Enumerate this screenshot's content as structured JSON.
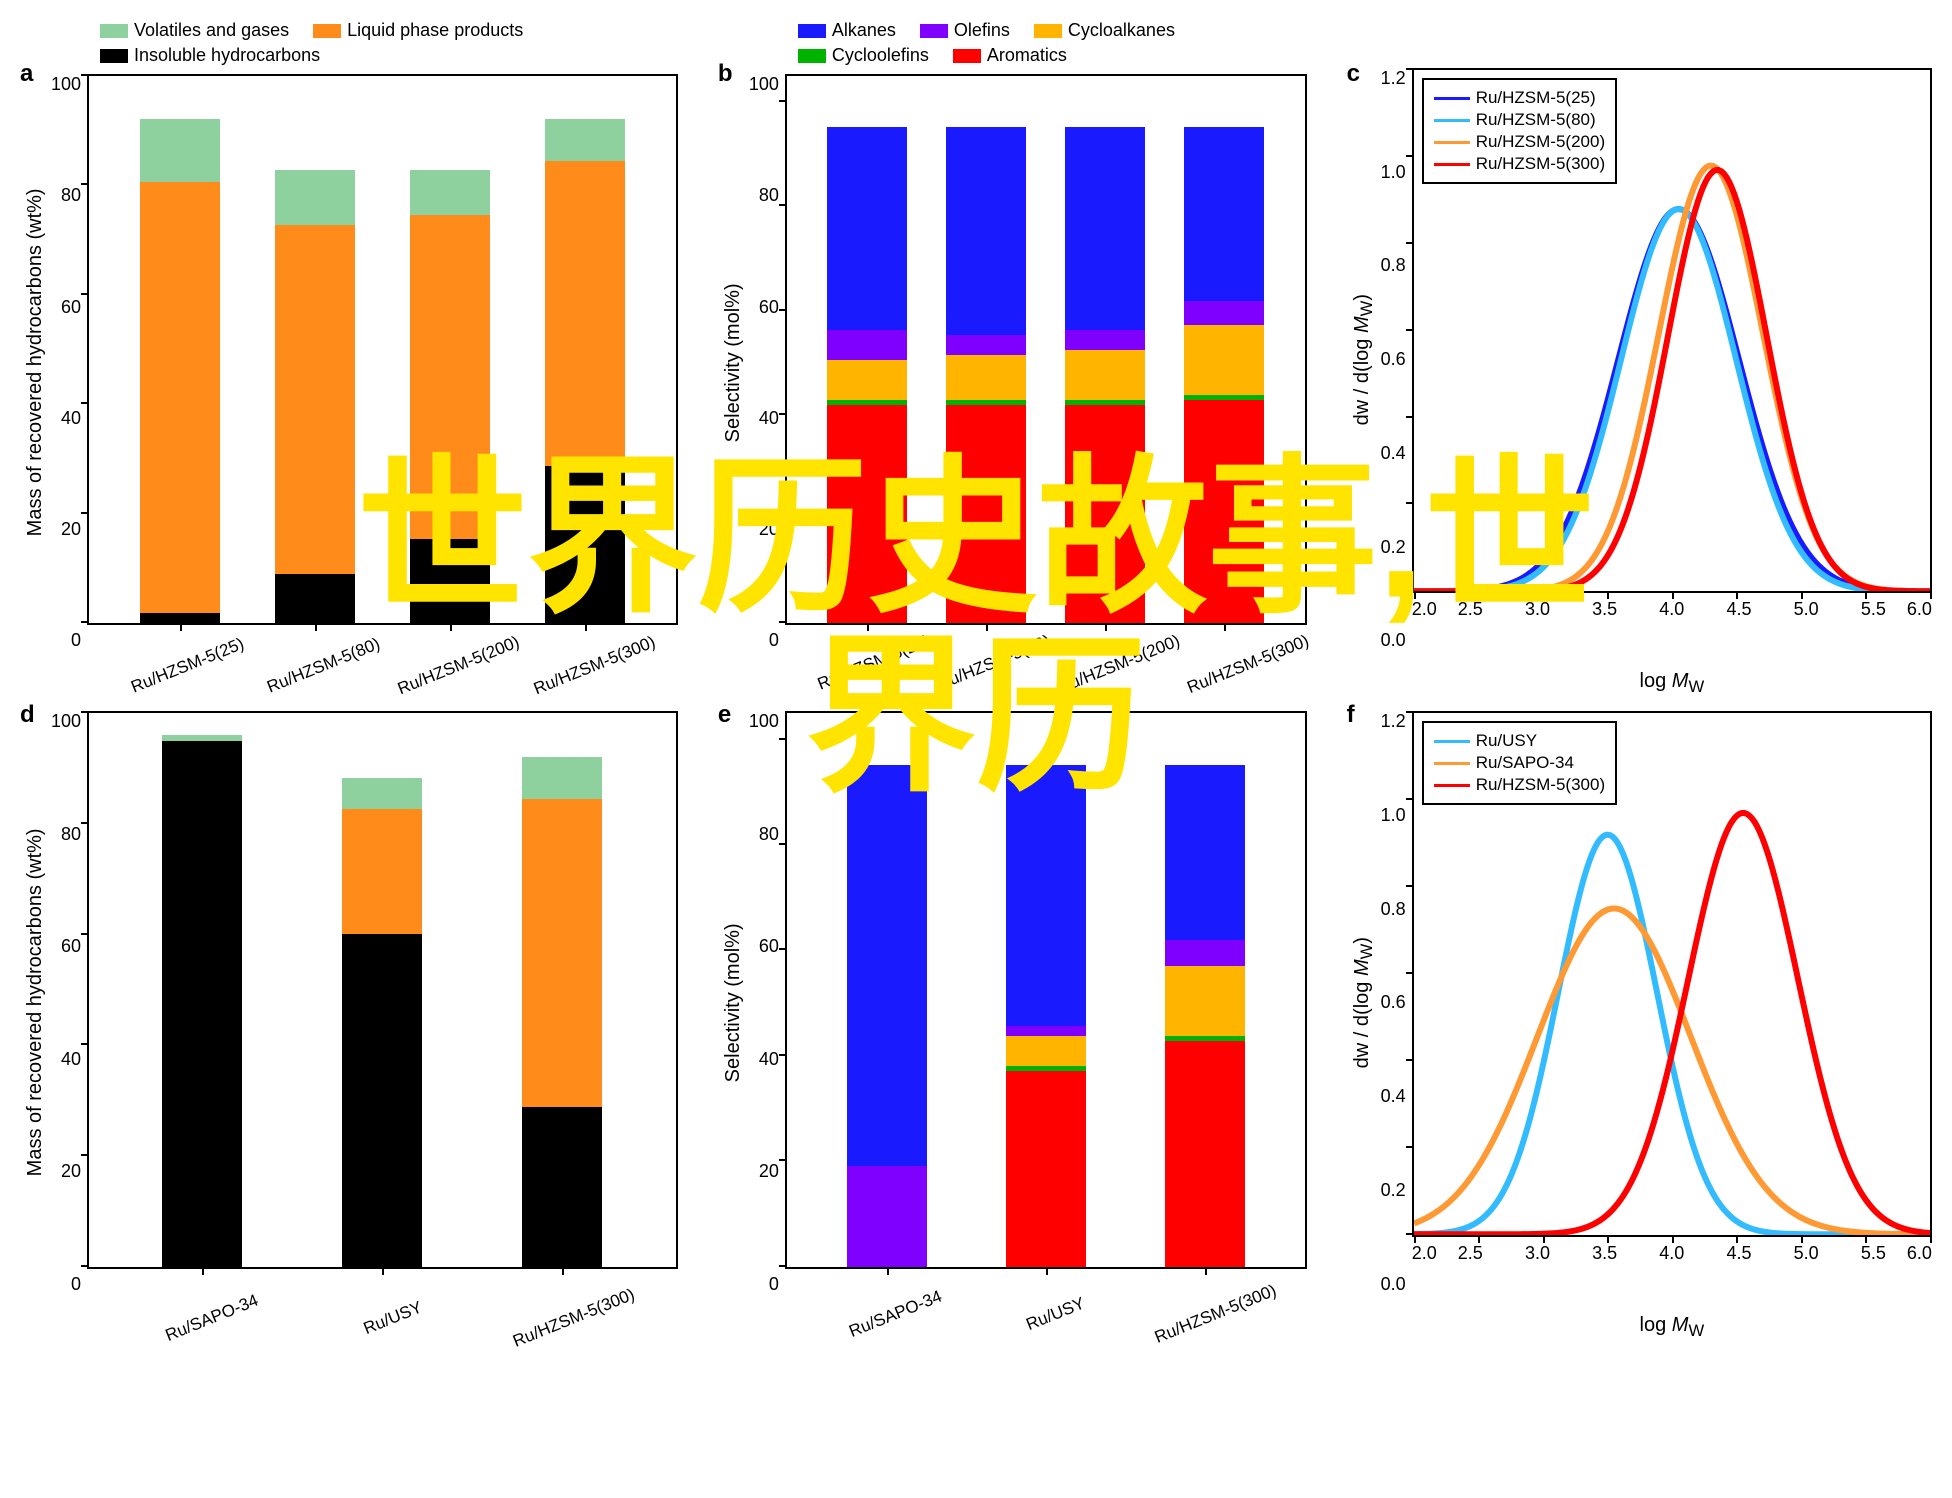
{
  "overlay_text_line1": "世界历史故事,世",
  "overlay_text_line2": "界历",
  "overlay_color": "#ffe400",
  "colors": {
    "volatiles": "#8fd19e",
    "liquid": "#ff8c1a",
    "insoluble": "#000000",
    "alkanes": "#1a1aff",
    "olefins": "#8000ff",
    "cycloalkanes": "#ffb400",
    "cycloolefins": "#00b300",
    "aromatics": "#ff0000",
    "axis": "#000000",
    "bg": "#ffffff"
  },
  "panel_a": {
    "label": "a",
    "ylabel": "Mass of recovered hydrocarbons (wt%)",
    "ylim": [
      0,
      100
    ],
    "ytick_step": 20,
    "legend": [
      {
        "name": "Volatiles and gases",
        "color": "#8fd19e"
      },
      {
        "name": "Liquid phase products",
        "color": "#ff8c1a"
      },
      {
        "name": "Insoluble hydrocarbons",
        "color": "#000000"
      }
    ],
    "categories": [
      "Ru/HZSM-5(25)",
      "Ru/HZSM-5(80)",
      "Ru/HZSM-5(200)",
      "Ru/HZSM-5(300)"
    ],
    "stacks": [
      {
        "insoluble": 2,
        "liquid": 82,
        "volatiles": 12
      },
      {
        "insoluble": 10,
        "liquid": 70,
        "volatiles": 11
      },
      {
        "insoluble": 17,
        "liquid": 65,
        "volatiles": 9
      },
      {
        "insoluble": 30,
        "liquid": 58,
        "volatiles": 8
      }
    ],
    "bar_width": 0.7
  },
  "panel_b": {
    "label": "b",
    "ylabel": "Selectivity (mol%)",
    "ylim": [
      0,
      105
    ],
    "yticks": [
      0,
      20,
      40,
      60,
      80,
      100
    ],
    "legend": [
      {
        "name": "Alkanes",
        "color": "#1a1aff"
      },
      {
        "name": "Olefins",
        "color": "#8000ff"
      },
      {
        "name": "Cycloalkanes",
        "color": "#ffb400"
      },
      {
        "name": "Cycloolefins",
        "color": "#00b300"
      },
      {
        "name": "Aromatics",
        "color": "#ff0000"
      }
    ],
    "categories": [
      "Ru/HZSM-5(25)",
      "Ru/HZSM-5(80)",
      "Ru/HZSM-5(200)",
      "Ru/HZSM-5(300)"
    ],
    "stacks": [
      {
        "aromatics": 44,
        "cycloolefins": 1,
        "cycloalkanes": 8,
        "olefins": 6,
        "alkanes": 41
      },
      {
        "aromatics": 44,
        "cycloolefins": 1,
        "cycloalkanes": 9,
        "olefins": 4,
        "alkanes": 42
      },
      {
        "aromatics": 44,
        "cycloolefins": 1,
        "cycloalkanes": 10,
        "olefins": 4,
        "alkanes": 41
      },
      {
        "aromatics": 45,
        "cycloolefins": 1,
        "cycloalkanes": 14,
        "olefins": 5,
        "alkanes": 35
      }
    ]
  },
  "panel_c": {
    "label": "c",
    "ylabel": "dw / d(log M_W)",
    "xlabel": "log M_W",
    "xlim": [
      2.0,
      6.0
    ],
    "xtick_step": 0.5,
    "ylim": [
      0.0,
      1.2
    ],
    "ytick_step": 0.2,
    "legend_pos": "top-left",
    "series": [
      {
        "name": "Ru/HZSM-5(25)",
        "color": "#1a1aff",
        "peak_x": 4.05,
        "peak_y": 0.88,
        "width": 1.1
      },
      {
        "name": "Ru/HZSM-5(80)",
        "color": "#33bbff",
        "peak_x": 4.05,
        "peak_y": 0.88,
        "width": 1.05
      },
      {
        "name": "Ru/HZSM-5(200)",
        "color": "#ff9933",
        "peak_x": 4.3,
        "peak_y": 0.98,
        "width": 0.95
      },
      {
        "name": "Ru/HZSM-5(300)",
        "color": "#ff0000",
        "peak_x": 4.35,
        "peak_y": 0.97,
        "width": 0.9
      }
    ]
  },
  "panel_d": {
    "label": "d",
    "ylabel": "Mass of recovered hydrocarbons (wt%)",
    "ylim": [
      0,
      100
    ],
    "ytick_step": 20,
    "categories": [
      "Ru/SAPO-34",
      "Ru/USY",
      "Ru/HZSM-5(300)"
    ],
    "stacks": [
      {
        "insoluble": 97,
        "liquid": 0,
        "volatiles": 1
      },
      {
        "insoluble": 64,
        "liquid": 24,
        "volatiles": 6
      },
      {
        "insoluble": 30,
        "liquid": 58,
        "volatiles": 8
      }
    ]
  },
  "panel_e": {
    "label": "e",
    "ylabel": "Selectivity (mol%)",
    "ylim": [
      0,
      105
    ],
    "yticks": [
      0,
      20,
      40,
      60,
      80,
      100
    ],
    "categories": [
      "Ru/SAPO-34",
      "Ru/USY",
      "Ru/HZSM-5(300)"
    ],
    "stacks": [
      {
        "aromatics": 0,
        "cycloolefins": 0,
        "cycloalkanes": 0,
        "olefins": 20,
        "alkanes": 80
      },
      {
        "aromatics": 39,
        "cycloolefins": 1,
        "cycloalkanes": 6,
        "olefins": 2,
        "alkanes": 52
      },
      {
        "aromatics": 45,
        "cycloolefins": 1,
        "cycloalkanes": 14,
        "olefins": 5,
        "alkanes": 35
      }
    ]
  },
  "panel_f": {
    "label": "f",
    "ylabel": "dw / d(log M_W)",
    "xlabel": "log M_W",
    "xlim": [
      2.0,
      6.0
    ],
    "xtick_step": 0.5,
    "ylim": [
      0.0,
      1.2
    ],
    "ytick_step": 0.2,
    "legend_pos": "top-left",
    "series": [
      {
        "name": "Ru/USY",
        "color": "#33bbff",
        "peak_x": 3.5,
        "peak_y": 0.92,
        "width": 0.9
      },
      {
        "name": "Ru/SAPO-34",
        "color": "#ff9933",
        "peak_x": 3.55,
        "peak_y": 0.75,
        "width": 1.4
      },
      {
        "name": "Ru/HZSM-5(300)",
        "color": "#ff0000",
        "peak_x": 4.55,
        "peak_y": 0.97,
        "width": 1.0
      }
    ]
  }
}
